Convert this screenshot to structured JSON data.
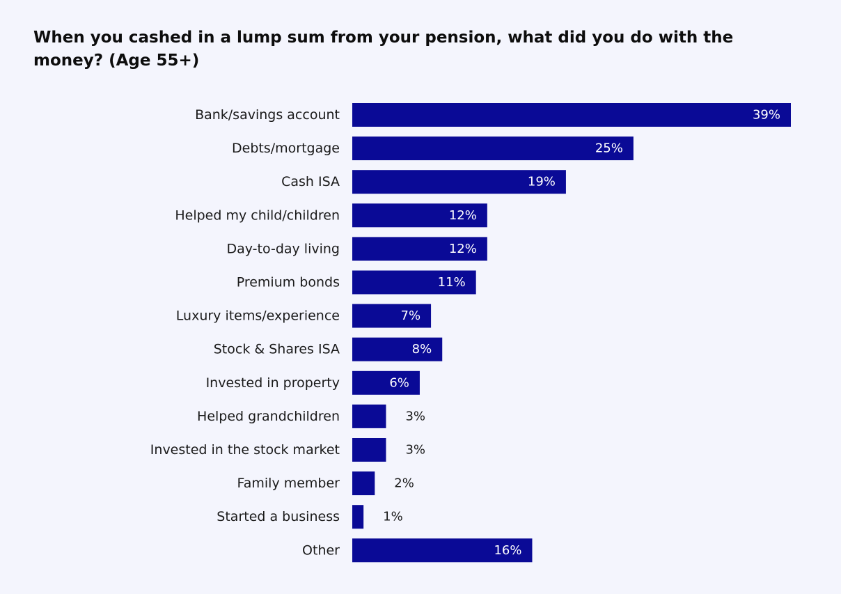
{
  "chart_data": {
    "type": "bar",
    "orientation": "horizontal",
    "title": "When you cashed in a lump sum from your pension, what did you do with the money? (Age 55+)",
    "xlabel": "",
    "ylabel": "",
    "categories": [
      "Bank/savings account",
      "Debts/mortgage",
      "Cash ISA",
      "Helped my child/children",
      "Day-to-day living",
      "Premium bonds",
      "Luxury items/experience",
      "Stock & Shares ISA",
      "Invested in property",
      "Helped grandchildren",
      "Invested in the stock market",
      "Family member",
      "Started a business",
      "Other"
    ],
    "values": [
      39,
      25,
      19,
      12,
      12,
      11,
      7,
      8,
      6,
      3,
      3,
      2,
      1,
      16
    ],
    "value_labels": [
      "39%",
      "25%",
      "19%",
      "12%",
      "12%",
      "11%",
      "7%",
      "8%",
      "6%",
      "3%",
      "3%",
      "2%",
      "1%",
      "16%"
    ],
    "xlim": [
      0,
      39
    ],
    "grid": false,
    "legend": "none",
    "colors": {
      "bar": "#0a0a96",
      "label_inside": "#ffffff",
      "label_outside": "#1a1a1a",
      "background": "#f4f5fd"
    }
  }
}
